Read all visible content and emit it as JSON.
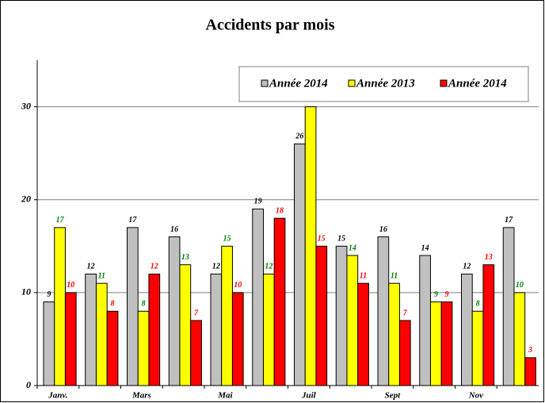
{
  "chart_data": {
    "type": "bar",
    "title": "Accidents par mois",
    "categories": [
      "Janv.",
      null,
      "Mars",
      null,
      "Mai",
      null,
      "Juil",
      null,
      "Sept",
      null,
      "Nov",
      null
    ],
    "series": [
      {
        "name": "Année 2014",
        "color": "#c0c0c0",
        "label_color": "#000000",
        "values": [
          9,
          12,
          17,
          16,
          12,
          19,
          26,
          15,
          16,
          14,
          12,
          17
        ]
      },
      {
        "name": "Année 2013",
        "color": "#ffff00",
        "label_color": "#008000",
        "values": [
          17,
          11,
          8,
          13,
          15,
          12,
          30,
          14,
          11,
          9,
          8,
          10
        ]
      },
      {
        "name": "Année 2014",
        "color": "#ff0000",
        "label_color": "#ff0000",
        "values": [
          10,
          8,
          12,
          7,
          10,
          18,
          15,
          11,
          7,
          9,
          13,
          3
        ]
      }
    ],
    "ylim": [
      0,
      35
    ],
    "yticks": [
      0,
      10,
      20,
      30
    ],
    "grid": true
  }
}
